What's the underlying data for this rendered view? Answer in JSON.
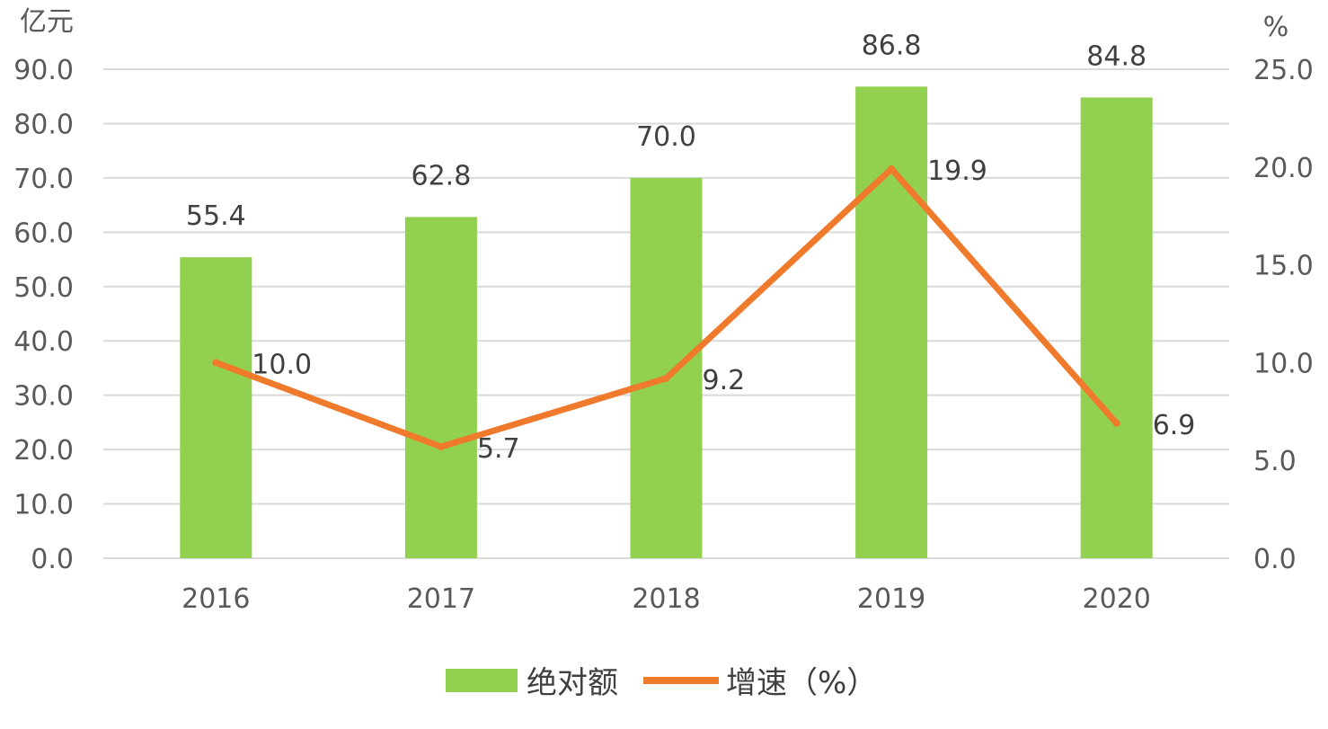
{
  "chart_data": {
    "type": "bar",
    "title": "",
    "categories": [
      "2016",
      "2017",
      "2018",
      "2019",
      "2020"
    ],
    "series": [
      {
        "name": "绝对额",
        "type": "bar",
        "axis": "left",
        "color": "#92d050",
        "values": [
          55.4,
          62.8,
          70.0,
          86.8,
          84.8
        ],
        "labels": [
          "55.4",
          "62.8",
          "70.0",
          "86.8",
          "84.8"
        ]
      },
      {
        "name": "增速（%）",
        "type": "line",
        "axis": "right",
        "color": "#f07a2c",
        "values": [
          10.0,
          5.7,
          9.2,
          19.9,
          6.9
        ],
        "labels": [
          "10.0",
          "5.7",
          "9.2",
          "19.9",
          "6.9"
        ]
      }
    ],
    "y_left": {
      "unit": "亿元",
      "range": [
        0,
        90
      ],
      "ticks": [
        "0.0",
        "10.0",
        "20.0",
        "30.0",
        "40.0",
        "50.0",
        "60.0",
        "70.0",
        "80.0",
        "90.0"
      ]
    },
    "y_right": {
      "unit": "%",
      "range": [
        0,
        25
      ],
      "ticks": [
        "0.0",
        "5.0",
        "10.0",
        "15.0",
        "20.0",
        "25.0"
      ]
    },
    "grid": true,
    "legend_position": "bottom"
  }
}
